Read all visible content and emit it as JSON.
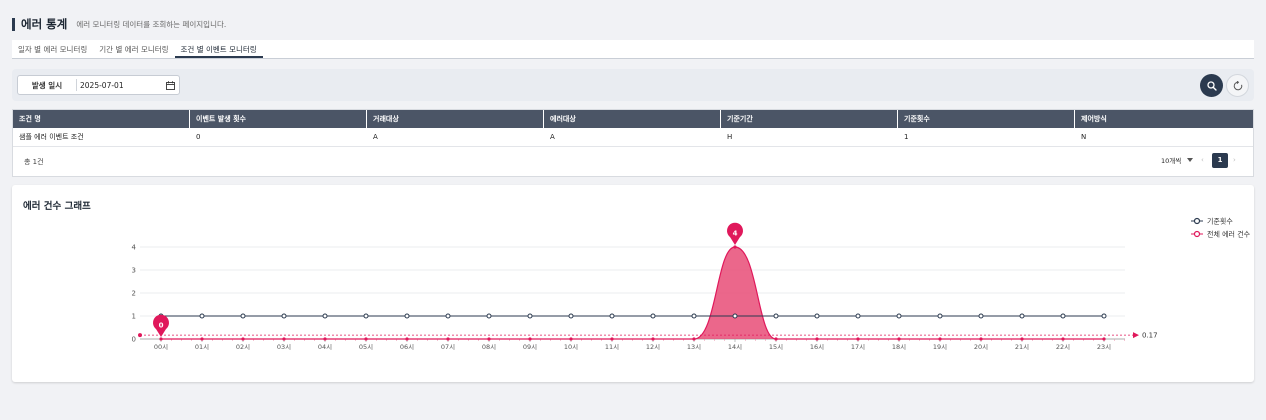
{
  "header": {
    "title": "에러 통계",
    "description": "에러 모니터링 데이터를 조회하는 페이지입니다."
  },
  "tabs": [
    {
      "label": "일자 별 에러 모니터링",
      "active": false
    },
    {
      "label": "기간 별 에러 모니터링",
      "active": false
    },
    {
      "label": "조건 별 이벤트 모니터링",
      "active": true
    }
  ],
  "filter": {
    "date_label": "발생 일시",
    "date_value": "2025-07-01",
    "icons": [
      "calendar-icon",
      "search-icon",
      "reset-icon"
    ]
  },
  "grid": {
    "columns": [
      "조건 명",
      "이벤트 발생 횟수",
      "거래대상",
      "에러대상",
      "기준기간",
      "기준횟수",
      "제어방식"
    ],
    "rows": [
      [
        "샘플 에러 이벤트 조건",
        "0",
        "A",
        "A",
        "H",
        "1",
        "N"
      ]
    ],
    "total": "총 1건",
    "page_size": "10개씩",
    "page": "1"
  },
  "chart_card": {
    "title": "에러 건수 그래프"
  },
  "colors": {
    "dark": "#2b3a4f",
    "header": "#4b5566",
    "error": "#e0185b",
    "error_fill": "#e84c77"
  },
  "chart_data": {
    "type": "line",
    "categories": [
      "00시",
      "01시",
      "02시",
      "03시",
      "04시",
      "05시",
      "06시",
      "07시",
      "08시",
      "09시",
      "10시",
      "11시",
      "12시",
      "13시",
      "14시",
      "15시",
      "16시",
      "17시",
      "18시",
      "19시",
      "20시",
      "21시",
      "22시",
      "23시"
    ],
    "series": [
      {
        "name": "기준횟수",
        "values": [
          1,
          1,
          1,
          1,
          1,
          1,
          1,
          1,
          1,
          1,
          1,
          1,
          1,
          1,
          1,
          1,
          1,
          1,
          1,
          1,
          1,
          1,
          1,
          1
        ],
        "color": "#2b3a4f"
      },
      {
        "name": "전체 에러 건수",
        "values": [
          0,
          0,
          0,
          0,
          0,
          0,
          0,
          0,
          0,
          0,
          0,
          0,
          0,
          0,
          4,
          0,
          0,
          0,
          0,
          0,
          0,
          0,
          0,
          0
        ],
        "color": "#e0185b"
      }
    ],
    "yticks": [
      0,
      1,
      2,
      3,
      4
    ],
    "ylim": [
      0,
      4
    ],
    "markers": [
      {
        "category": "00시",
        "label": "0"
      },
      {
        "category": "14시",
        "label": "4"
      }
    ],
    "average_line": {
      "value": 0.17,
      "label": "0.17"
    },
    "legend_position": "top-right",
    "grid": true
  }
}
